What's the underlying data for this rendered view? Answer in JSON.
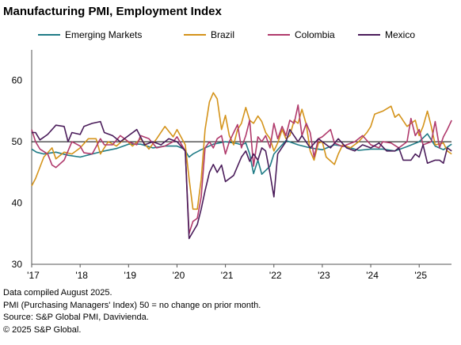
{
  "chart_data": {
    "type": "line",
    "title": "Manufacturing PMI, Employment Index",
    "xlabel": "",
    "ylabel": "",
    "xlim": [
      2017.0,
      2025.667
    ],
    "ylim": [
      30,
      65
    ],
    "yticks": [
      30,
      40,
      50,
      60
    ],
    "xticks": [
      {
        "label": "'17",
        "x": 2017
      },
      {
        "label": "'18",
        "x": 2018
      },
      {
        "label": "'19",
        "x": 2019
      },
      {
        "label": "'20",
        "x": 2020
      },
      {
        "label": "'21",
        "x": 2021
      },
      {
        "label": "'22",
        "x": 2022
      },
      {
        "label": "'23",
        "x": 2023
      },
      {
        "label": "'24",
        "x": 2024
      },
      {
        "label": "'25",
        "x": 2025
      }
    ],
    "reference_line": 50,
    "grid": false,
    "legend_position": "top",
    "series": [
      {
        "name": "Emerging Markets",
        "color": "#1f7b86",
        "points": [
          [
            2017.0,
            48.8
          ],
          [
            2017.1,
            48.3
          ],
          [
            2017.25,
            48.0
          ],
          [
            2017.5,
            48.3
          ],
          [
            2017.75,
            47.8
          ],
          [
            2018.0,
            47.5
          ],
          [
            2018.25,
            48.0
          ],
          [
            2018.5,
            48.5
          ],
          [
            2018.75,
            48.9
          ],
          [
            2019.0,
            49.6
          ],
          [
            2019.25,
            49.6
          ],
          [
            2019.5,
            49.0
          ],
          [
            2019.75,
            49.3
          ],
          [
            2020.0,
            49.3
          ],
          [
            2020.15,
            48.8
          ],
          [
            2020.25,
            47.5
          ],
          [
            2020.33,
            48.0
          ],
          [
            2020.5,
            48.7
          ],
          [
            2020.75,
            49.6
          ],
          [
            2021.0,
            50.0
          ],
          [
            2021.25,
            49.7
          ],
          [
            2021.33,
            49.5
          ],
          [
            2021.42,
            49.8
          ],
          [
            2021.5,
            48.0
          ],
          [
            2021.58,
            44.8
          ],
          [
            2021.67,
            47.0
          ],
          [
            2021.75,
            44.7
          ],
          [
            2021.92,
            46.0
          ],
          [
            2022.0,
            48.0
          ],
          [
            2022.25,
            50.2
          ],
          [
            2022.5,
            49.5
          ],
          [
            2022.75,
            49.0
          ],
          [
            2023.0,
            48.7
          ],
          [
            2023.25,
            49.5
          ],
          [
            2023.5,
            49.2
          ],
          [
            2023.75,
            48.6
          ],
          [
            2024.0,
            48.8
          ],
          [
            2024.25,
            48.8
          ],
          [
            2024.5,
            48.5
          ],
          [
            2024.75,
            49.2
          ],
          [
            2025.0,
            50.0
          ],
          [
            2025.17,
            51.3
          ],
          [
            2025.33,
            49.3
          ],
          [
            2025.5,
            48.7
          ],
          [
            2025.67,
            49.6
          ]
        ]
      },
      {
        "name": "Brazil",
        "color": "#d4931a",
        "points": [
          [
            2017.0,
            42.8
          ],
          [
            2017.08,
            44.0
          ],
          [
            2017.25,
            47.5
          ],
          [
            2017.42,
            49.0
          ],
          [
            2017.5,
            47.2
          ],
          [
            2017.67,
            48.3
          ],
          [
            2017.83,
            48.0
          ],
          [
            2018.0,
            49.0
          ],
          [
            2018.17,
            50.5
          ],
          [
            2018.33,
            50.5
          ],
          [
            2018.42,
            48.0
          ],
          [
            2018.58,
            50.0
          ],
          [
            2018.75,
            49.3
          ],
          [
            2018.92,
            50.5
          ],
          [
            2019.08,
            49.3
          ],
          [
            2019.25,
            50.5
          ],
          [
            2019.42,
            48.8
          ],
          [
            2019.58,
            50.5
          ],
          [
            2019.75,
            52.5
          ],
          [
            2019.92,
            50.8
          ],
          [
            2020.0,
            52.0
          ],
          [
            2020.17,
            49.5
          ],
          [
            2020.25,
            44.0
          ],
          [
            2020.33,
            39.0
          ],
          [
            2020.42,
            39.0
          ],
          [
            2020.5,
            43.8
          ],
          [
            2020.58,
            52.0
          ],
          [
            2020.67,
            56.5
          ],
          [
            2020.75,
            58.0
          ],
          [
            2020.83,
            57.0
          ],
          [
            2020.92,
            52.0
          ],
          [
            2021.0,
            54.3
          ],
          [
            2021.08,
            51.0
          ],
          [
            2021.17,
            49.5
          ],
          [
            2021.25,
            52.0
          ],
          [
            2021.33,
            53.0
          ],
          [
            2021.42,
            55.6
          ],
          [
            2021.5,
            53.5
          ],
          [
            2021.58,
            53.0
          ],
          [
            2021.67,
            54.2
          ],
          [
            2021.75,
            53.3
          ],
          [
            2021.83,
            51.5
          ],
          [
            2021.92,
            50.5
          ],
          [
            2022.0,
            48.5
          ],
          [
            2022.08,
            49.8
          ],
          [
            2022.17,
            52.0
          ],
          [
            2022.25,
            50.5
          ],
          [
            2022.33,
            51.0
          ],
          [
            2022.42,
            53.5
          ],
          [
            2022.5,
            53.0
          ],
          [
            2022.58,
            55.3
          ],
          [
            2022.67,
            52.8
          ],
          [
            2022.75,
            48.5
          ],
          [
            2022.83,
            47.0
          ],
          [
            2022.92,
            49.8
          ],
          [
            2023.0,
            50.0
          ],
          [
            2023.08,
            47.5
          ],
          [
            2023.25,
            46.3
          ],
          [
            2023.33,
            48.0
          ],
          [
            2023.42,
            49.5
          ],
          [
            2023.58,
            49.0
          ],
          [
            2023.75,
            50.0
          ],
          [
            2023.92,
            51.5
          ],
          [
            2024.0,
            52.5
          ],
          [
            2024.08,
            54.5
          ],
          [
            2024.25,
            55.0
          ],
          [
            2024.42,
            55.8
          ],
          [
            2024.5,
            54.0
          ],
          [
            2024.58,
            54.5
          ],
          [
            2024.75,
            52.5
          ],
          [
            2024.92,
            53.5
          ],
          [
            2025.0,
            51.0
          ],
          [
            2025.08,
            52.5
          ],
          [
            2025.17,
            55.0
          ],
          [
            2025.25,
            52.5
          ],
          [
            2025.33,
            49.5
          ],
          [
            2025.5,
            49.8
          ],
          [
            2025.58,
            48.5
          ],
          [
            2025.67,
            48.0
          ]
        ]
      },
      {
        "name": "Colombia",
        "color": "#b03a6c",
        "points": [
          [
            2017.0,
            52.0
          ],
          [
            2017.08,
            50.0
          ],
          [
            2017.17,
            48.8
          ],
          [
            2017.33,
            48.0
          ],
          [
            2017.42,
            46.2
          ],
          [
            2017.5,
            45.8
          ],
          [
            2017.67,
            47.0
          ],
          [
            2017.83,
            50.0
          ],
          [
            2018.0,
            49.3
          ],
          [
            2018.08,
            48.2
          ],
          [
            2018.25,
            48.0
          ],
          [
            2018.42,
            50.5
          ],
          [
            2018.5,
            49.5
          ],
          [
            2018.67,
            49.5
          ],
          [
            2018.83,
            51.0
          ],
          [
            2019.0,
            50.0
          ],
          [
            2019.17,
            49.5
          ],
          [
            2019.25,
            51.0
          ],
          [
            2019.42,
            50.5
          ],
          [
            2019.58,
            49.0
          ],
          [
            2019.75,
            49.3
          ],
          [
            2019.92,
            50.0
          ],
          [
            2020.0,
            50.8
          ],
          [
            2020.17,
            48.5
          ],
          [
            2020.25,
            35.0
          ],
          [
            2020.33,
            37.0
          ],
          [
            2020.42,
            37.5
          ],
          [
            2020.5,
            41.0
          ],
          [
            2020.58,
            49.0
          ],
          [
            2020.67,
            50.0
          ],
          [
            2020.75,
            49.0
          ],
          [
            2020.83,
            50.5
          ],
          [
            2020.92,
            51.0
          ],
          [
            2021.0,
            48.0
          ],
          [
            2021.08,
            50.0
          ],
          [
            2021.17,
            51.5
          ],
          [
            2021.25,
            52.8
          ],
          [
            2021.33,
            49.0
          ],
          [
            2021.42,
            51.0
          ],
          [
            2021.5,
            53.5
          ],
          [
            2021.58,
            46.0
          ],
          [
            2021.67,
            50.8
          ],
          [
            2021.75,
            50.0
          ],
          [
            2021.83,
            51.0
          ],
          [
            2021.92,
            49.0
          ],
          [
            2022.0,
            53.0
          ],
          [
            2022.08,
            50.5
          ],
          [
            2022.17,
            52.5
          ],
          [
            2022.25,
            51.0
          ],
          [
            2022.33,
            53.5
          ],
          [
            2022.42,
            53.0
          ],
          [
            2022.5,
            56.0
          ],
          [
            2022.58,
            51.0
          ],
          [
            2022.67,
            53.0
          ],
          [
            2022.75,
            51.5
          ],
          [
            2022.83,
            47.5
          ],
          [
            2022.92,
            50.5
          ],
          [
            2023.0,
            50.8
          ],
          [
            2023.17,
            52.0
          ],
          [
            2023.25,
            49.8
          ],
          [
            2023.42,
            49.2
          ],
          [
            2023.5,
            49.5
          ],
          [
            2023.67,
            50.0
          ],
          [
            2023.83,
            51.0
          ],
          [
            2024.0,
            49.5
          ],
          [
            2024.17,
            49.0
          ],
          [
            2024.25,
            50.0
          ],
          [
            2024.42,
            49.8
          ],
          [
            2024.58,
            49.0
          ],
          [
            2024.75,
            50.0
          ],
          [
            2024.83,
            53.8
          ],
          [
            2024.92,
            51.0
          ],
          [
            2025.0,
            52.0
          ],
          [
            2025.08,
            49.5
          ],
          [
            2025.25,
            50.0
          ],
          [
            2025.33,
            53.3
          ],
          [
            2025.42,
            49.0
          ],
          [
            2025.5,
            50.8
          ],
          [
            2025.58,
            52.0
          ],
          [
            2025.67,
            53.5
          ]
        ]
      },
      {
        "name": "Mexico",
        "color": "#4a1c5a",
        "points": [
          [
            2017.0,
            51.5
          ],
          [
            2017.08,
            51.5
          ],
          [
            2017.17,
            50.3
          ],
          [
            2017.33,
            51.2
          ],
          [
            2017.5,
            52.7
          ],
          [
            2017.67,
            52.5
          ],
          [
            2017.75,
            50.0
          ],
          [
            2017.83,
            51.5
          ],
          [
            2018.0,
            51.2
          ],
          [
            2018.08,
            52.5
          ],
          [
            2018.25,
            53.0
          ],
          [
            2018.42,
            53.3
          ],
          [
            2018.5,
            51.5
          ],
          [
            2018.67,
            51.0
          ],
          [
            2018.83,
            50.0
          ],
          [
            2019.0,
            51.0
          ],
          [
            2019.17,
            52.0
          ],
          [
            2019.33,
            49.5
          ],
          [
            2019.5,
            50.0
          ],
          [
            2019.67,
            49.5
          ],
          [
            2019.83,
            50.5
          ],
          [
            2020.0,
            50.0
          ],
          [
            2020.17,
            48.5
          ],
          [
            2020.25,
            34.2
          ],
          [
            2020.33,
            35.3
          ],
          [
            2020.42,
            36.5
          ],
          [
            2020.5,
            39.0
          ],
          [
            2020.58,
            42.0
          ],
          [
            2020.67,
            45.0
          ],
          [
            2020.75,
            46.3
          ],
          [
            2020.83,
            45.0
          ],
          [
            2020.92,
            46.2
          ],
          [
            2021.0,
            43.5
          ],
          [
            2021.17,
            44.5
          ],
          [
            2021.25,
            46.0
          ],
          [
            2021.33,
            47.5
          ],
          [
            2021.42,
            48.5
          ],
          [
            2021.5,
            46.8
          ],
          [
            2021.58,
            48.0
          ],
          [
            2021.67,
            47.0
          ],
          [
            2021.75,
            49.0
          ],
          [
            2021.83,
            48.5
          ],
          [
            2021.92,
            44.8
          ],
          [
            2022.0,
            41.0
          ],
          [
            2022.08,
            48.0
          ],
          [
            2022.25,
            50.0
          ],
          [
            2022.33,
            52.0
          ],
          [
            2022.5,
            50.0
          ],
          [
            2022.58,
            51.0
          ],
          [
            2022.75,
            49.0
          ],
          [
            2022.92,
            50.5
          ],
          [
            2023.0,
            50.0
          ],
          [
            2023.17,
            49.0
          ],
          [
            2023.33,
            50.5
          ],
          [
            2023.5,
            49.0
          ],
          [
            2023.67,
            48.5
          ],
          [
            2023.83,
            49.5
          ],
          [
            2024.0,
            49.0
          ],
          [
            2024.17,
            49.8
          ],
          [
            2024.33,
            48.5
          ],
          [
            2024.5,
            48.5
          ],
          [
            2024.58,
            49.0
          ],
          [
            2024.67,
            47.0
          ],
          [
            2024.83,
            47.0
          ],
          [
            2024.92,
            48.0
          ],
          [
            2025.0,
            47.5
          ],
          [
            2025.08,
            49.5
          ],
          [
            2025.17,
            46.5
          ],
          [
            2025.33,
            47.0
          ],
          [
            2025.42,
            47.0
          ],
          [
            2025.5,
            46.5
          ],
          [
            2025.58,
            49.0
          ],
          [
            2025.67,
            48.5
          ]
        ]
      }
    ]
  },
  "footnotes": [
    "Data compiled August 2025.",
    "PMI (Purchasing Managers' Index) 50 = no change on prior month.",
    "Source: S&P Global PMI, Davivienda.",
    "© 2025 S&P Global."
  ]
}
